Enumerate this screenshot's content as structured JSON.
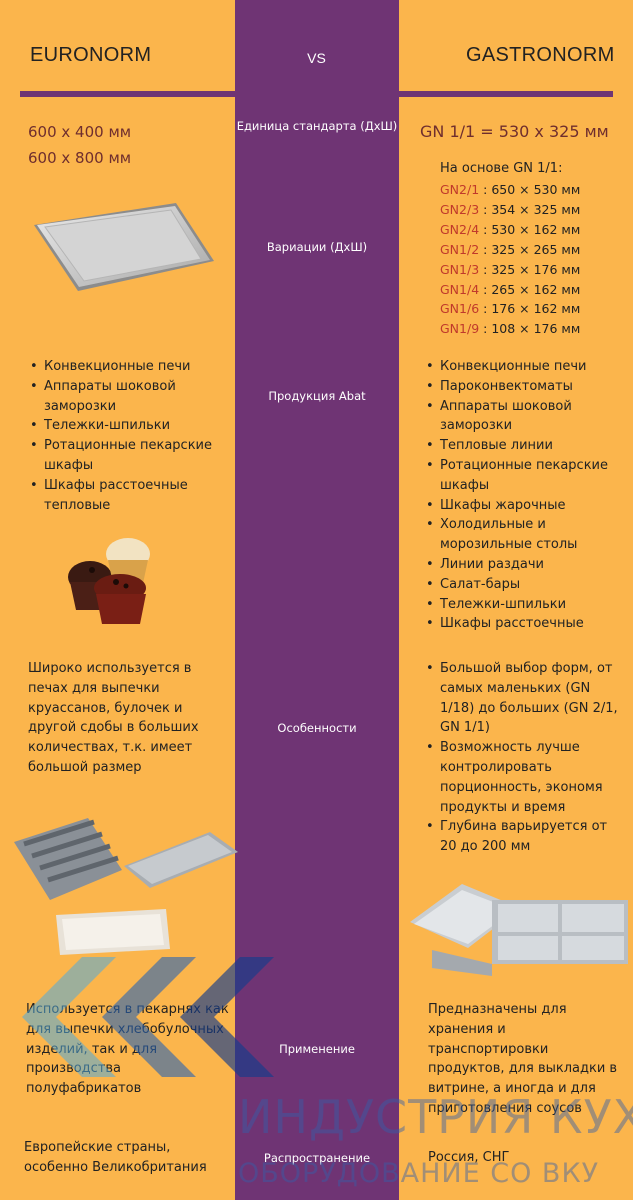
{
  "header": {
    "left_title": "EURONORM",
    "vs": "VS",
    "right_title": "GASTRONORM"
  },
  "rows": {
    "unit_label": "Единица стандарта (ДхШ)",
    "variants_label": "Вариации (ДхШ)",
    "production_label": "Продукция Abat",
    "features_label": "Особенности",
    "usage_label": "Применение",
    "spread_label": "Распространение"
  },
  "euronorm": {
    "sizes": [
      "600 х 400 мм",
      "600 х 800 мм"
    ],
    "products": [
      "Конвекционные печи",
      "Аппараты шоковой заморозки",
      "Тележки-шпильки",
      "Ротационные пекарские шкафы",
      "Шкафы расстоечные тепловые"
    ],
    "features": "Широко используется в печах для выпечки круассанов, булочек и другой сдобы в больших количествах, т.к. имеет большой размер",
    "usage": "Используется в пекарнях как для выпечки хлебобулочных изделий, так и для производства полуфабрикатов",
    "spread": "Европейские страны, особенно Великобритания"
  },
  "gastronorm": {
    "unit": "GN 1/1 = 530 х 325 мм",
    "base": "На основе GN 1/1:",
    "variants": [
      {
        "code": "GN2/1",
        "size": " : 650 × 530 мм"
      },
      {
        "code": "GN2/3",
        "size": " : 354 × 325 мм"
      },
      {
        "code": "GN2/4",
        "size": " : 530 × 162 мм"
      },
      {
        "code": "GN1/2",
        "size": " : 325 × 265 мм"
      },
      {
        "code": "GN1/3",
        "size": " : 325 × 176 мм"
      },
      {
        "code": "GN1/4",
        "size": " : 265 × 162 мм"
      },
      {
        "code": "GN1/6",
        "size": " : 176 × 162 мм"
      },
      {
        "code": "GN1/9",
        "size": " : 108 × 176 мм"
      }
    ],
    "products": [
      "Конвекционные печи",
      "Пароконвектоматы",
      "Аппараты шоковой заморозки",
      "Тепловые линии",
      "Ротационные пекарские шкафы",
      "Шкафы жарочные",
      "Холодильные и морозильные столы",
      "Линии раздачи",
      "Салат-бары",
      "Тележки-шпильки",
      "Шкафы расстоечные"
    ],
    "features": [
      "Большой выбор форм, от самых маленьких (GN 1/18) до больших (GN 2/1, GN 1/1)",
      "Возможность лучше контролировать порционность, экономя продукты и время",
      "Глубина варьируется от 20 до 200 мм"
    ],
    "usage": "Предназначены для хранения и транспортировки продуктов, для выкладки в витрине, а иногда и для приготовления соусов",
    "spread": "Россия, СНГ"
  },
  "watermark": {
    "line1": "ИНДУСТРИЯ КУХ",
    "line2": "ОБОРУДОВАНИЕ СО ВКУ"
  },
  "colors": {
    "background": "#fbb54c",
    "strip": "#6f3474",
    "accent_code": "#c0392b",
    "size_text": "#6f2e2e"
  }
}
